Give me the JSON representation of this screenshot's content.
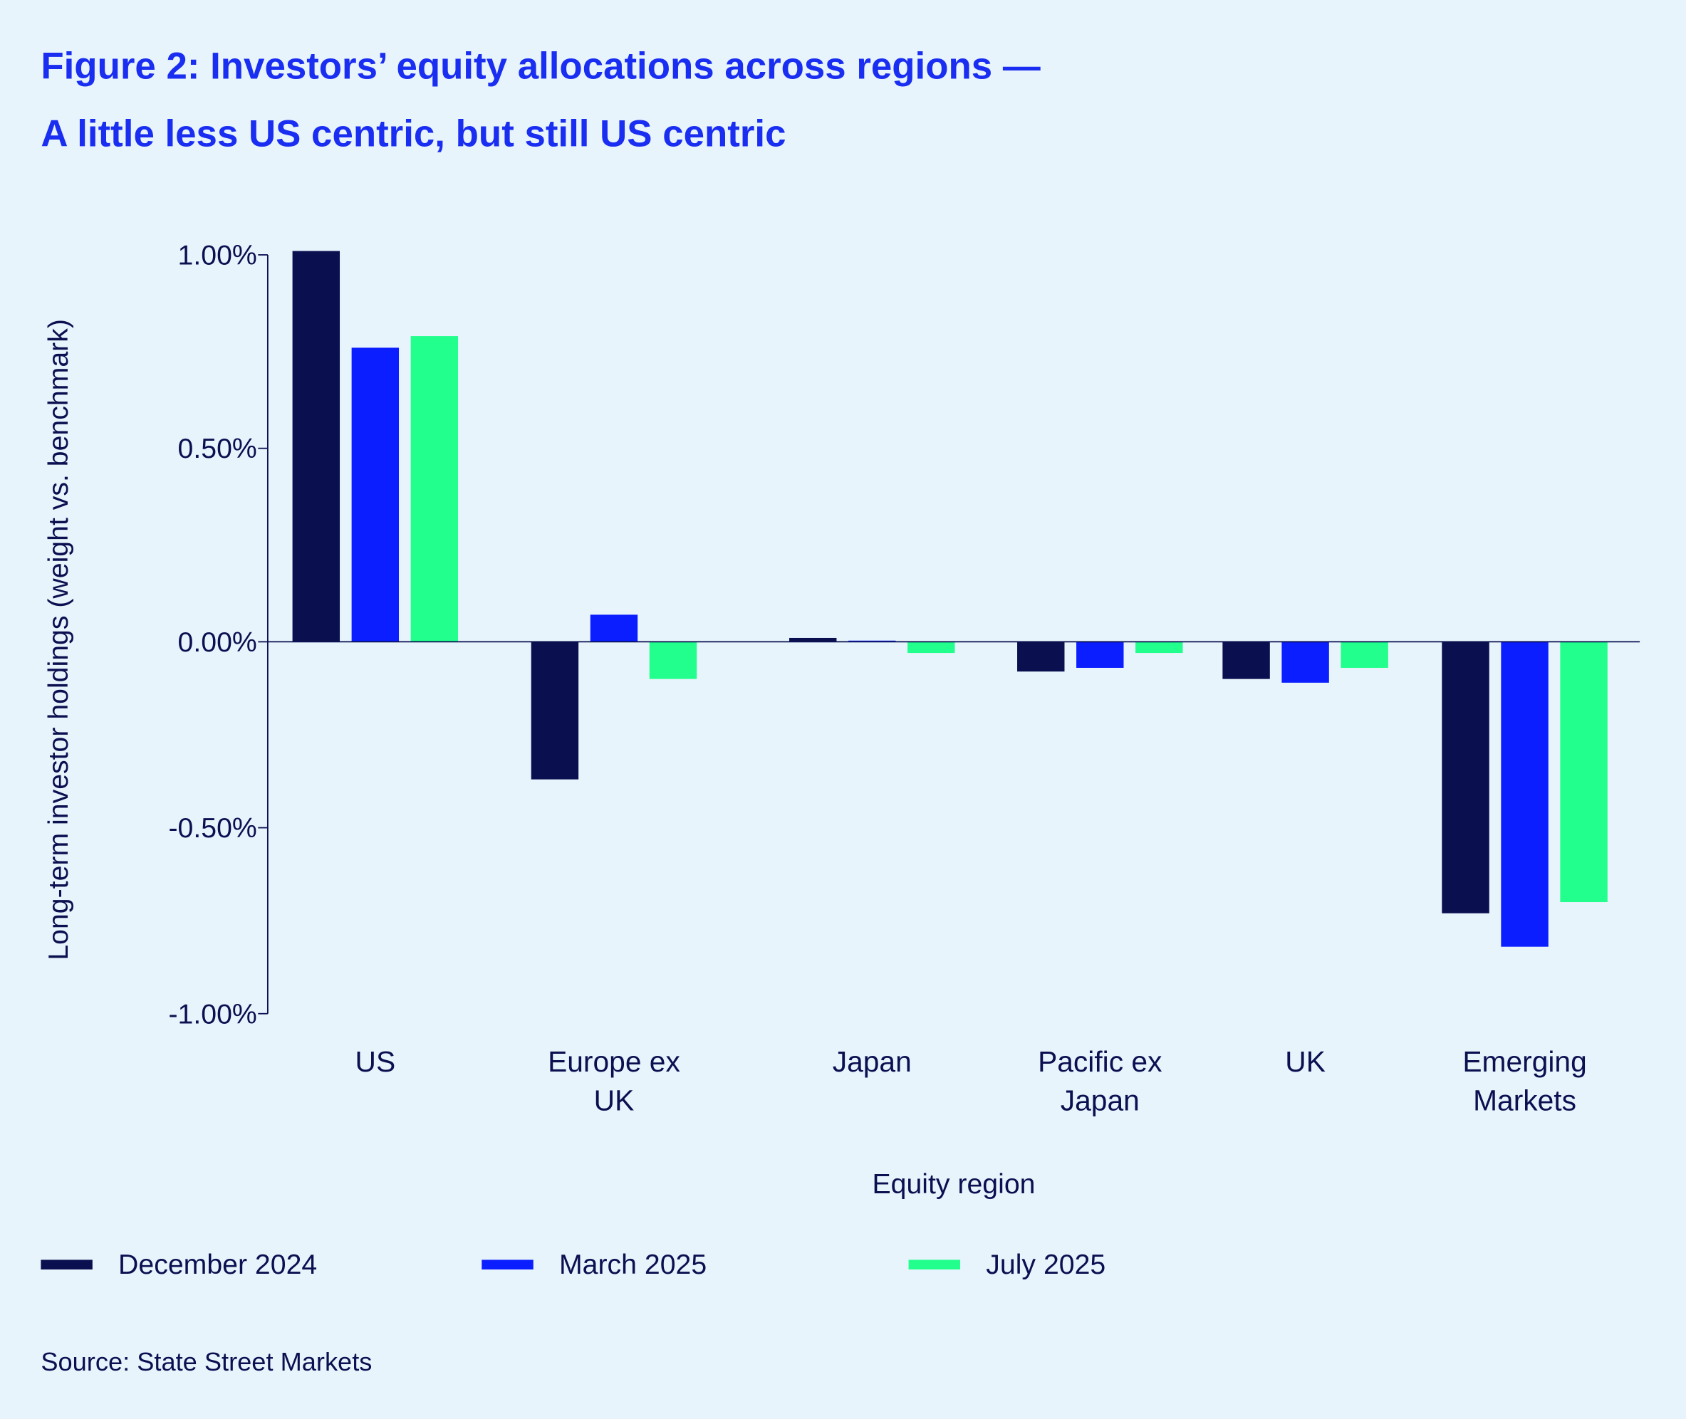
{
  "chart_data": {
    "type": "bar",
    "title": "Figure 2: Investors’ equity allocations across regions —",
    "subtitle": "A little less US centric, but still US centric",
    "xlabel": "Equity region",
    "ylabel": "Long-term investor holdings (weight vs. benchmark)",
    "ylim": [
      -1.0,
      1.0
    ],
    "yticks": [
      1.0,
      0.5,
      0.0,
      -0.5,
      -1.0
    ],
    "ytick_labels": [
      "1.00%",
      "0.50%",
      "0.00%",
      "-0.50%",
      "-1.00%"
    ],
    "categories": [
      [
        "US"
      ],
      [
        "Europe ex",
        "UK"
      ],
      [
        "Japan"
      ],
      [
        "Pacific ex",
        "Japan"
      ],
      [
        "UK"
      ],
      [
        "Emerging",
        "Markets"
      ]
    ],
    "series": [
      {
        "name": "December 2024",
        "color": "#0a0f50",
        "values": [
          1.01,
          -0.37,
          0.01,
          -0.08,
          -0.1,
          -0.73
        ]
      },
      {
        "name": "March 2025",
        "color": "#0a1eff",
        "values": [
          0.76,
          0.07,
          0.003,
          -0.07,
          -0.11,
          -0.82
        ]
      },
      {
        "name": "July 2025",
        "color": "#22ff8c",
        "values": [
          0.79,
          -0.1,
          -0.03,
          -0.03,
          -0.07,
          -0.7
        ]
      }
    ],
    "legend_position": "bottom-left",
    "grid": false,
    "source": "Source: State Street Markets"
  }
}
